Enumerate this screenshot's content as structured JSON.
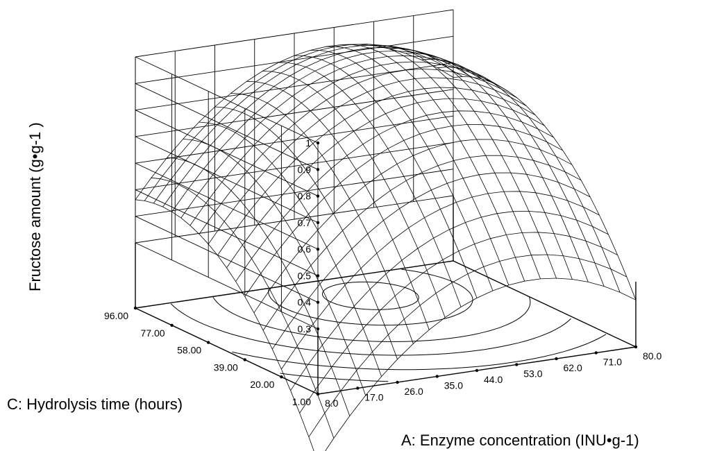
{
  "chart_data": {
    "type": "surface3d",
    "x_axis": {
      "label": "A: Enzyme concentration (INU•g-1)",
      "ticks": [
        "8.0",
        "17.0",
        "26.0",
        "35.0",
        "44.0",
        "53.0",
        "62.0",
        "71.0",
        "80.0"
      ],
      "range": [
        8.0,
        80.0
      ]
    },
    "y_axis": {
      "label": "C: Hydrolysis time (hours)",
      "ticks": [
        "1.00",
        "20.00",
        "39.00",
        "58.00",
        "77.00",
        "96.00"
      ],
      "range": [
        1.0,
        96.0
      ]
    },
    "z_axis": {
      "label": "Fructose amount (g•g-1 )",
      "ticks": [
        "0.3",
        "0.4",
        "0.5",
        "0.6",
        "0.7",
        "0.8",
        "0.9",
        "1"
      ],
      "range": [
        0.3,
        1.0
      ]
    },
    "surface": {
      "grid_size": 21,
      "approx_corners": {
        "A8_C1": 0.0,
        "A80_C1": 0.36,
        "A8_C96": 0.69,
        "A80_C96": 0.41
      },
      "approx_max": {
        "A": 53.0,
        "C": 77.0,
        "z": 0.97
      }
    },
    "contours_on_floor": true
  }
}
